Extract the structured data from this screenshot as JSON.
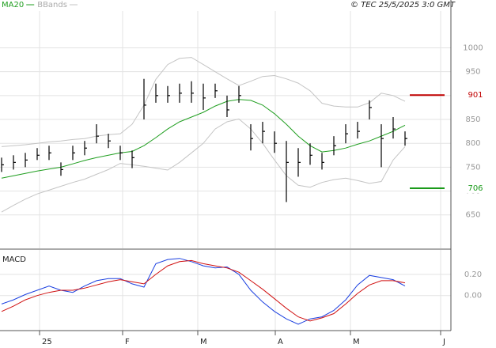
{
  "chart_data": [
    {
      "type": "ohlc",
      "copyright": "© TEC 25/5/2025 3:0 GMT",
      "x": [
        0,
        3,
        6,
        9,
        12,
        15,
        18,
        21,
        24,
        27,
        30,
        33,
        36,
        39,
        42,
        45,
        48,
        51,
        54,
        57,
        60,
        63,
        66,
        69,
        72,
        75,
        78,
        81,
        84,
        87,
        90,
        93,
        96,
        99,
        102
      ],
      "bars": {
        "color": "#000000",
        "high": [
          770,
          775,
          780,
          790,
          795,
          760,
          795,
          805,
          840,
          820,
          795,
          785,
          935,
          925,
          920,
          925,
          930,
          925,
          925,
          900,
          920,
          840,
          845,
          825,
          805,
          790,
          800,
          780,
          815,
          840,
          845,
          890,
          840,
          855,
          825
        ],
        "low": [
          740,
          745,
          750,
          765,
          765,
          732,
          765,
          775,
          800,
          790,
          765,
          748,
          850,
          885,
          885,
          885,
          885,
          870,
          895,
          855,
          885,
          785,
          800,
          780,
          677,
          730,
          755,
          745,
          775,
          800,
          810,
          850,
          750,
          810,
          795
        ],
        "close": [
          755,
          760,
          765,
          775,
          780,
          745,
          780,
          790,
          815,
          805,
          780,
          770,
          880,
          900,
          900,
          905,
          905,
          895,
          910,
          870,
          900,
          810,
          825,
          800,
          760,
          760,
          775,
          760,
          795,
          820,
          825,
          875,
          810,
          830,
          810
        ]
      },
      "series": [
        {
          "name": "MA20",
          "color": "#1f9e1f",
          "values": [
            727,
            732,
            737,
            742,
            746,
            750,
            757,
            764,
            770,
            775,
            780,
            783,
            795,
            812,
            830,
            845,
            855,
            865,
            878,
            888,
            892,
            890,
            880,
            862,
            840,
            815,
            795,
            782,
            785,
            790,
            798,
            805,
            815,
            825,
            838
          ]
        }
      ],
      "bands": {
        "name": "BBands",
        "color": "#c4c4c4",
        "upper": [
          793,
          795,
          797,
          800,
          803,
          805,
          808,
          810,
          815,
          818,
          820,
          840,
          880,
          934,
          965,
          978,
          980,
          965,
          950,
          935,
          921,
          930,
          940,
          942,
          935,
          926,
          910,
          884,
          878,
          876,
          876,
          885,
          905,
          900,
          888
        ],
        "lower": [
          656,
          670,
          683,
          694,
          702,
          710,
          718,
          725,
          735,
          745,
          758,
          755,
          752,
          748,
          744,
          760,
          780,
          800,
          830,
          845,
          851,
          830,
          800,
          765,
          732,
          712,
          708,
          718,
          724,
          727,
          722,
          716,
          720,
          765,
          793
        ]
      },
      "annotations": [
        {
          "value": 901,
          "color": "#c00000"
        },
        {
          "value": 706,
          "color": "#1a9a1a"
        }
      ],
      "xlim": [
        -0.4,
        113.6
      ],
      "ylim": [
        580,
        1077
      ],
      "yticks": [
        650,
        700,
        750,
        800,
        850,
        900,
        950,
        1000
      ],
      "grid": true
    },
    {
      "type": "line",
      "title": "MACD",
      "x": [
        0,
        3,
        6,
        9,
        12,
        15,
        18,
        21,
        24,
        27,
        30,
        33,
        36,
        39,
        42,
        45,
        48,
        51,
        54,
        57,
        60,
        63,
        66,
        69,
        72,
        75,
        78,
        81,
        84,
        87,
        90,
        93,
        96,
        99,
        102
      ],
      "series": [
        {
          "color": "#1a3fe0",
          "values": [
            -0.08,
            -0.04,
            0.01,
            0.05,
            0.09,
            0.05,
            0.03,
            0.09,
            0.14,
            0.16,
            0.16,
            0.11,
            0.08,
            0.3,
            0.34,
            0.35,
            0.32,
            0.28,
            0.26,
            0.27,
            0.2,
            0.05,
            -0.06,
            -0.15,
            -0.22,
            -0.27,
            -0.22,
            -0.2,
            -0.14,
            -0.04,
            0.1,
            0.19,
            0.17,
            0.15,
            0.09
          ]
        },
        {
          "color": "#d01010",
          "values": [
            -0.15,
            -0.1,
            -0.04,
            0.0,
            0.03,
            0.05,
            0.05,
            0.07,
            0.1,
            0.13,
            0.15,
            0.13,
            0.11,
            0.2,
            0.28,
            0.32,
            0.33,
            0.3,
            0.28,
            0.26,
            0.22,
            0.14,
            0.06,
            -0.03,
            -0.12,
            -0.2,
            -0.24,
            -0.21,
            -0.17,
            -0.08,
            0.02,
            0.1,
            0.14,
            0.14,
            0.12
          ]
        }
      ],
      "xlim": [
        -0.4,
        113.6
      ],
      "xticks": [
        {
          "value": 9.6,
          "label": "25"
        },
        {
          "value": 30.6,
          "label": "F"
        },
        {
          "value": 49.6,
          "label": "M"
        },
        {
          "value": 69.2,
          "label": "A"
        },
        {
          "value": 88.2,
          "label": "M"
        },
        {
          "value": 111,
          "label": "J"
        }
      ],
      "ylim": [
        -0.33,
        0.43
      ],
      "yticks": [
        {
          "value": 0.2,
          "label": "0.20"
        },
        {
          "value": 0,
          "label": "0.00"
        }
      ],
      "grid": true
    }
  ]
}
